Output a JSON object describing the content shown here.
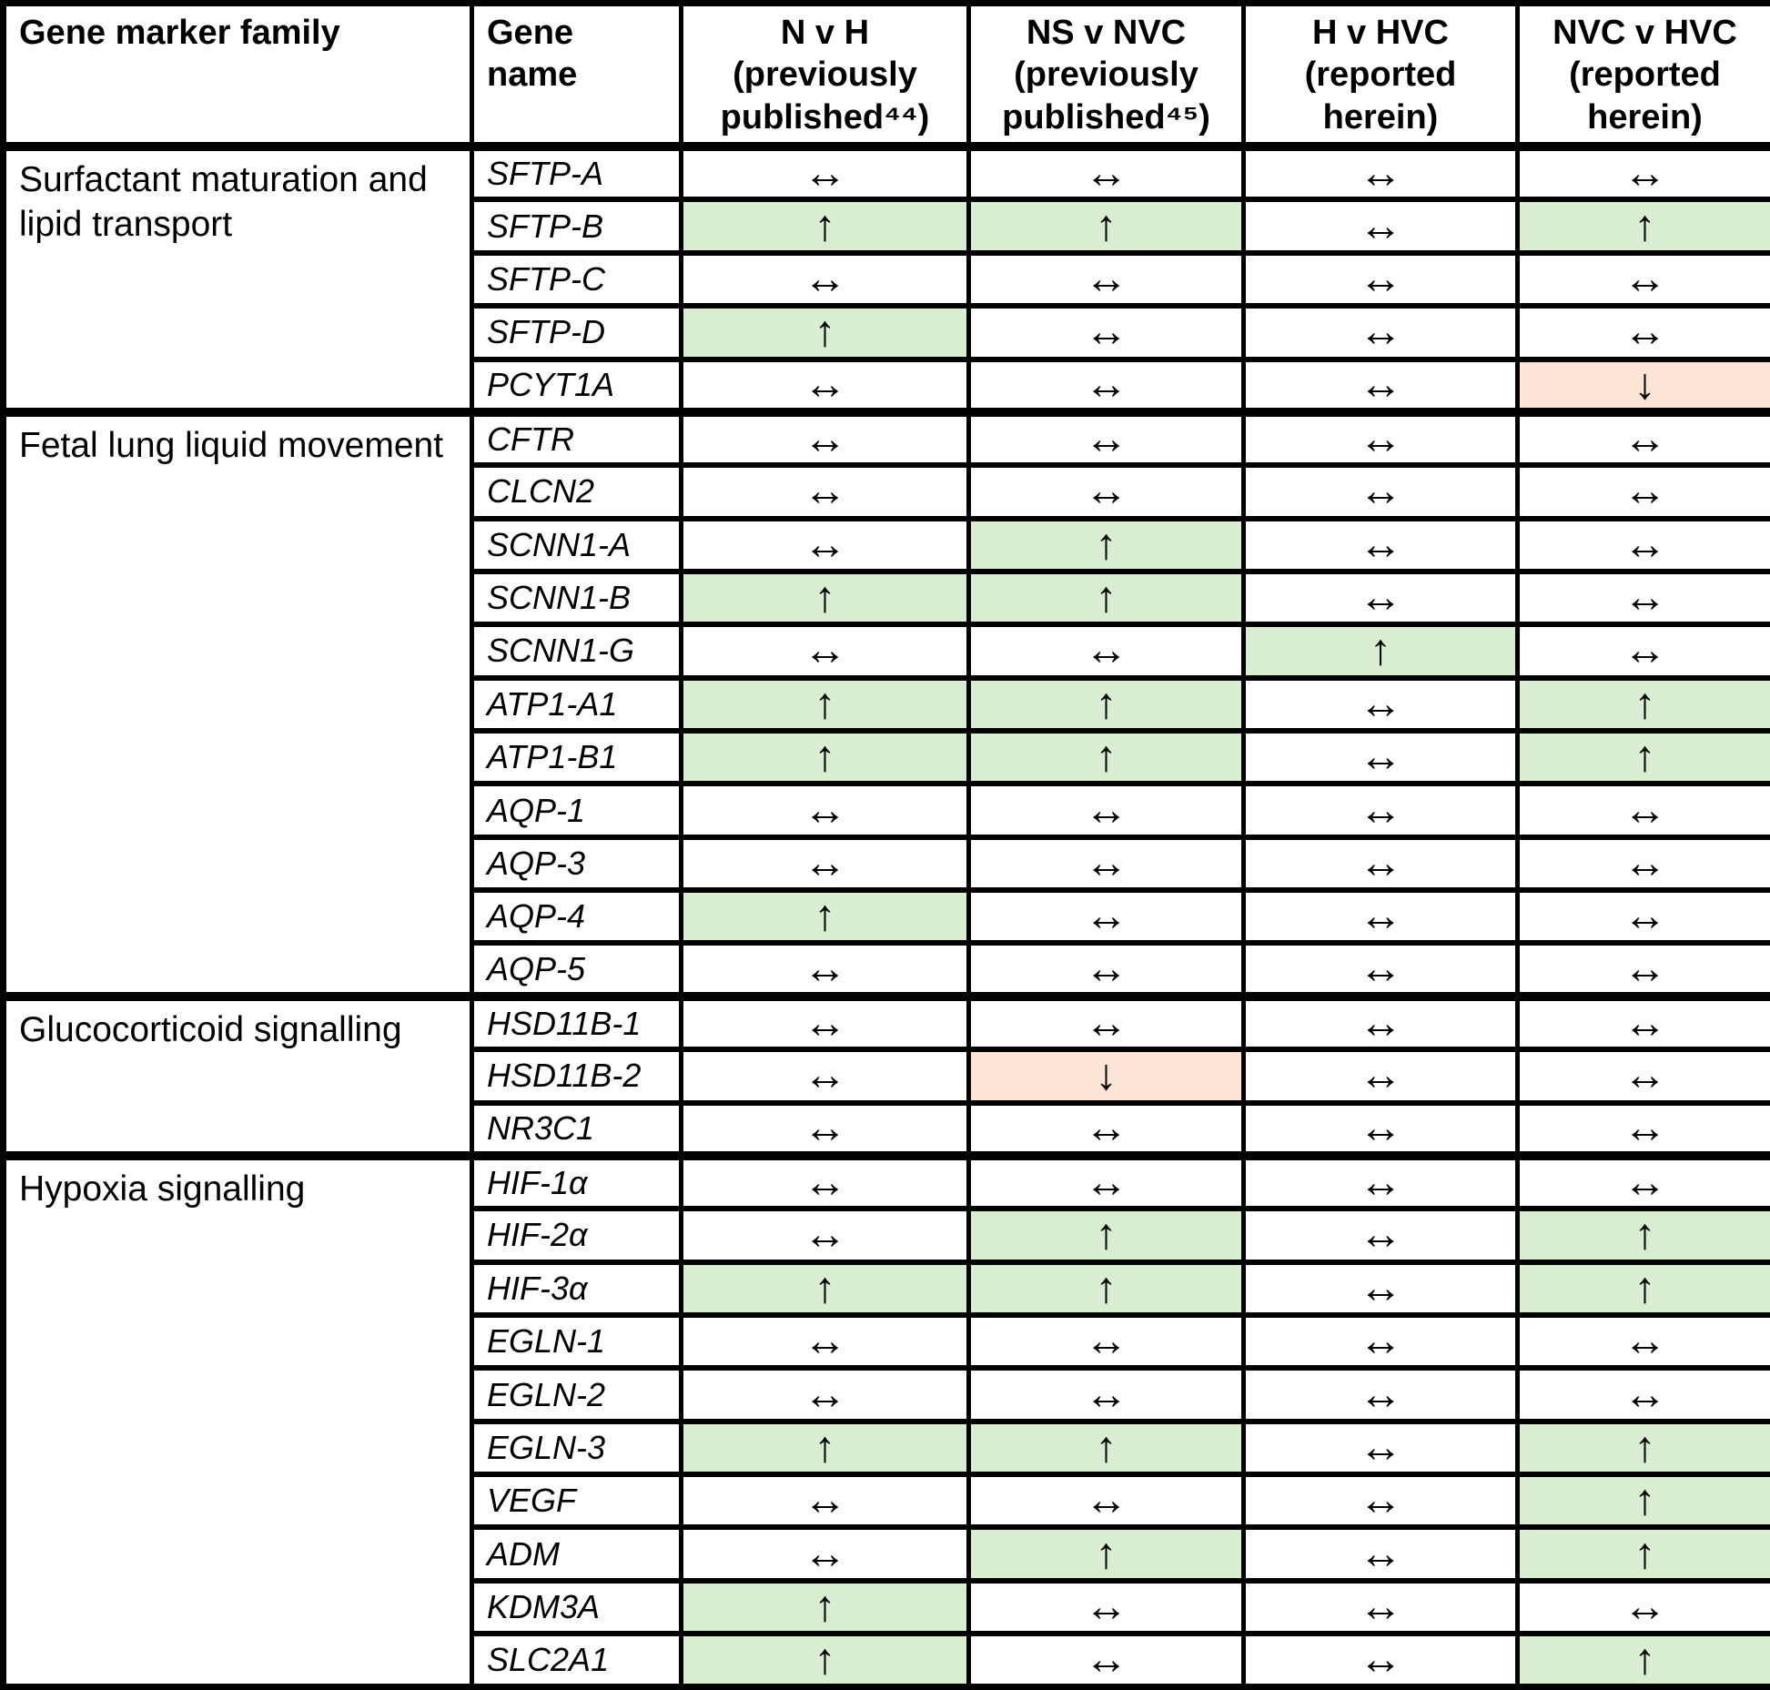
{
  "table": {
    "columns": [
      {
        "key": "gene-marker-family",
        "label": "Gene marker family",
        "align": "left"
      },
      {
        "key": "gene-name",
        "label": "Gene\nname",
        "align": "left"
      },
      {
        "key": "n-v-h",
        "label": "N v H\n(previously\npublished⁴⁴)",
        "align": "center"
      },
      {
        "key": "ns-v-nvc",
        "label": "NS v NVC\n(previously\npublished⁴⁵)",
        "align": "center"
      },
      {
        "key": "h-v-hvc",
        "label": "H v HVC\n(reported\nherein)",
        "align": "center"
      },
      {
        "key": "nvc-v-hvc",
        "label": "NVC v HVC\n(reported\nherein)",
        "align": "center"
      }
    ],
    "glyphs": {
      "up": "↑",
      "down": "↓",
      "same": "↔"
    },
    "colors": {
      "up_bg": "#d9edd1",
      "down_bg": "#fce5d4",
      "border": "#000000",
      "bg": "#ffffff"
    },
    "sections": [
      {
        "family": "Surfactant maturation and lipid transport",
        "rows": [
          {
            "gene": "SFTP-A",
            "values": [
              "same",
              "same",
              "same",
              "same"
            ]
          },
          {
            "gene": "SFTP-B",
            "values": [
              "up",
              "up",
              "same",
              "up"
            ]
          },
          {
            "gene": "SFTP-C",
            "values": [
              "same",
              "same",
              "same",
              "same"
            ]
          },
          {
            "gene": "SFTP-D",
            "values": [
              "up",
              "same",
              "same",
              "same"
            ]
          },
          {
            "gene": "PCYT1A",
            "values": [
              "same",
              "same",
              "same",
              "down"
            ]
          }
        ]
      },
      {
        "family": "Fetal lung liquid movement",
        "rows": [
          {
            "gene": "CFTR",
            "values": [
              "same",
              "same",
              "same",
              "same"
            ]
          },
          {
            "gene": "CLCN2",
            "values": [
              "same",
              "same",
              "same",
              "same"
            ]
          },
          {
            "gene": "SCNN1-A",
            "values": [
              "same",
              "up",
              "same",
              "same"
            ]
          },
          {
            "gene": "SCNN1-B",
            "values": [
              "up",
              "up",
              "same",
              "same"
            ]
          },
          {
            "gene": "SCNN1-G",
            "values": [
              "same",
              "same",
              "up",
              "same"
            ]
          },
          {
            "gene": "ATP1-A1",
            "values": [
              "up",
              "up",
              "same",
              "up"
            ]
          },
          {
            "gene": "ATP1-B1",
            "values": [
              "up",
              "up",
              "same",
              "up"
            ]
          },
          {
            "gene": "AQP-1",
            "values": [
              "same",
              "same",
              "same",
              "same"
            ]
          },
          {
            "gene": "AQP-3",
            "values": [
              "same",
              "same",
              "same",
              "same"
            ]
          },
          {
            "gene": "AQP-4",
            "values": [
              "up",
              "same",
              "same",
              "same"
            ]
          },
          {
            "gene": "AQP-5",
            "values": [
              "same",
              "same",
              "same",
              "same"
            ]
          }
        ]
      },
      {
        "family": "Glucocorticoid signalling",
        "rows": [
          {
            "gene": "HSD11B-1",
            "values": [
              "same",
              "same",
              "same",
              "same"
            ]
          },
          {
            "gene": "HSD11B-2",
            "values": [
              "same",
              "down",
              "same",
              "same"
            ]
          },
          {
            "gene": "NR3C1",
            "values": [
              "same",
              "same",
              "same",
              "same"
            ]
          }
        ]
      },
      {
        "family": "Hypoxia signalling",
        "rows": [
          {
            "gene": "HIF-1α",
            "values": [
              "same",
              "same",
              "same",
              "same"
            ]
          },
          {
            "gene": "HIF-2α",
            "values": [
              "same",
              "up",
              "same",
              "up"
            ]
          },
          {
            "gene": "HIF-3α",
            "values": [
              "up",
              "up",
              "same",
              "up"
            ]
          },
          {
            "gene": "EGLN-1",
            "values": [
              "same",
              "same",
              "same",
              "same"
            ]
          },
          {
            "gene": "EGLN-2",
            "values": [
              "same",
              "same",
              "same",
              "same"
            ]
          },
          {
            "gene": "EGLN-3",
            "values": [
              "up",
              "up",
              "same",
              "up"
            ]
          },
          {
            "gene": "VEGF",
            "values": [
              "same",
              "same",
              "same",
              "up"
            ]
          },
          {
            "gene": "ADM",
            "values": [
              "same",
              "up",
              "same",
              "up"
            ]
          },
          {
            "gene": "KDM3A",
            "values": [
              "up",
              "same",
              "same",
              "same"
            ]
          },
          {
            "gene": "SLC2A1",
            "values": [
              "up",
              "same",
              "same",
              "up"
            ]
          }
        ]
      }
    ]
  }
}
